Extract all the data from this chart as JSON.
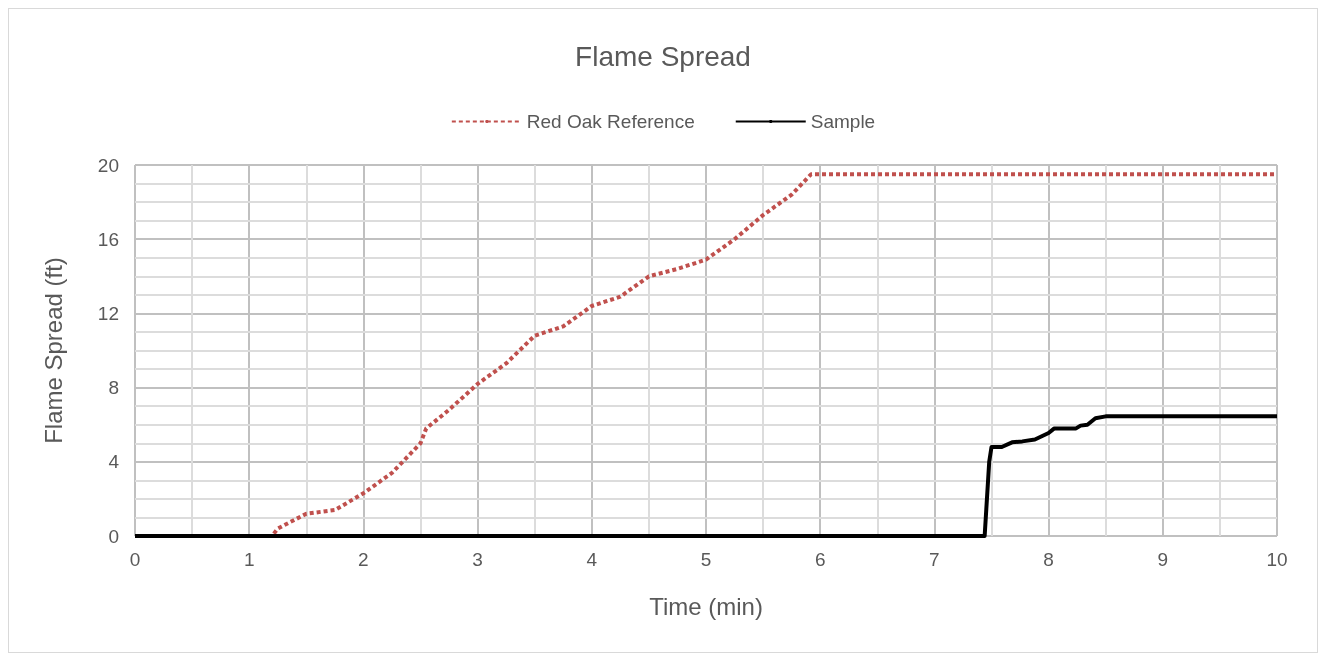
{
  "chart_data": {
    "type": "line",
    "title": "Flame Spread",
    "xlabel": "Time (min)",
    "ylabel": "Flame Spread (ft)",
    "xlim": [
      0,
      10
    ],
    "xticks": [
      0,
      1,
      2,
      3,
      4,
      5,
      6,
      7,
      8,
      9,
      10
    ],
    "ylim": [
      0,
      20
    ],
    "yticks": [
      0,
      4,
      8,
      12,
      16,
      20
    ],
    "grid": true,
    "legend": "top",
    "marker": "none",
    "series": [
      {
        "name": "Red Oak Reference",
        "color": "#c0504d",
        "line_style": "dashed",
        "x": [
          0,
          1.2,
          1.25,
          1.5,
          1.75,
          2,
          2.25,
          2.5,
          2.55,
          2.75,
          3,
          3.25,
          3.5,
          3.75,
          4,
          4.25,
          4.5,
          4.75,
          5,
          5.25,
          5.5,
          5.75,
          5.92,
          10
        ],
        "values": [
          0,
          0,
          0.4,
          1.2,
          1.4,
          2.3,
          3.4,
          5.0,
          5.8,
          6.8,
          8.2,
          9.3,
          10.8,
          11.3,
          12.4,
          12.9,
          14.0,
          14.4,
          14.9,
          16.0,
          17.3,
          18.4,
          19.5,
          19.5
        ]
      },
      {
        "name": "Sample",
        "color": "#000000",
        "line_style": "solid",
        "x": [
          0,
          7.44,
          7.48,
          7.5,
          7.59,
          7.68,
          7.77,
          7.88,
          8.0,
          8.05,
          8.24,
          8.28,
          8.34,
          8.41,
          8.5,
          10
        ],
        "values": [
          0,
          0,
          4.0,
          4.8,
          4.8,
          5.05,
          5.1,
          5.2,
          5.55,
          5.8,
          5.8,
          5.95,
          6.0,
          6.35,
          6.45,
          6.45
        ]
      }
    ]
  }
}
